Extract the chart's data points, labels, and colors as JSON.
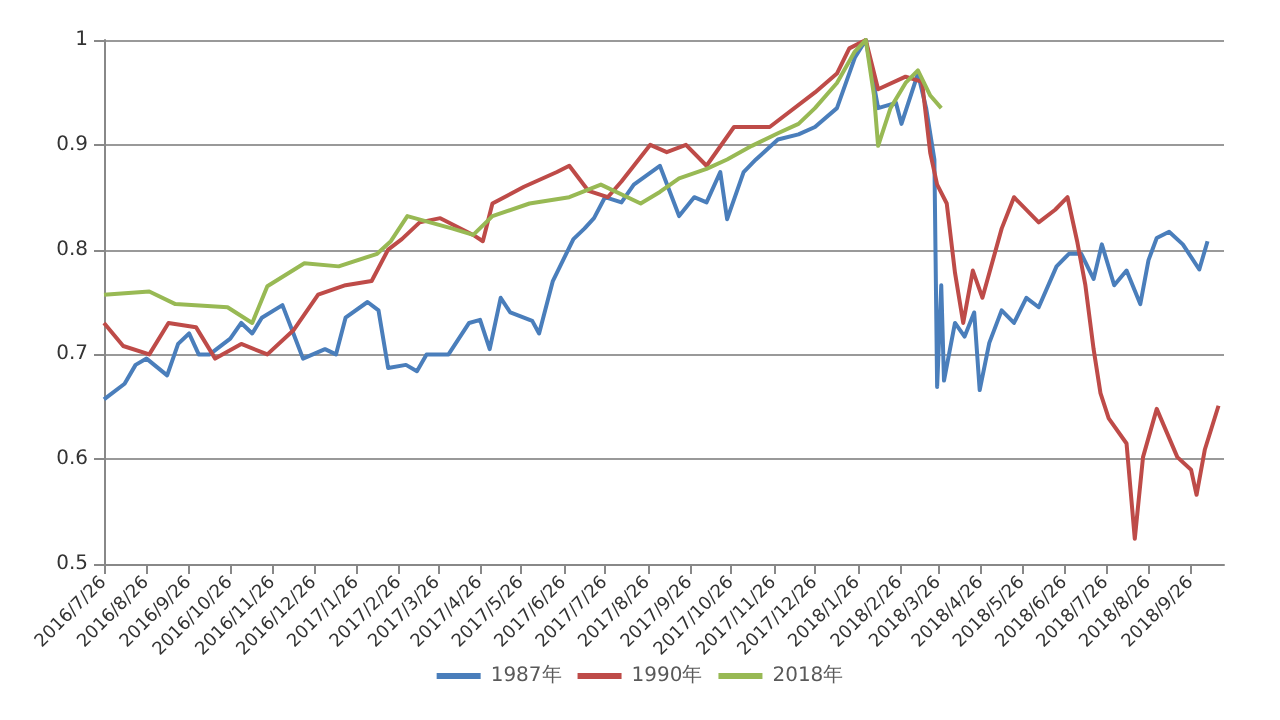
{
  "chart_data": {
    "type": "line",
    "xlim": [
      "2016-07-26",
      "2018-10-20"
    ],
    "xticks": [
      {
        "value": "2016-07-26",
        "label": "2016/7/26"
      },
      {
        "value": "2016-08-26",
        "label": "2016/8/26"
      },
      {
        "value": "2016-09-26",
        "label": "2016/9/26"
      },
      {
        "value": "2016-10-26",
        "label": "2016/10/26"
      },
      {
        "value": "2016-11-26",
        "label": "2016/11/26"
      },
      {
        "value": "2016-12-26",
        "label": "2016/12/26"
      },
      {
        "value": "2017-01-26",
        "label": "2017/1/26"
      },
      {
        "value": "2017-02-26",
        "label": "2017/2/26"
      },
      {
        "value": "2017-03-26",
        "label": "2017/3/26"
      },
      {
        "value": "2017-04-26",
        "label": "2017/4/26"
      },
      {
        "value": "2017-05-26",
        "label": "2017/5/26"
      },
      {
        "value": "2017-06-26",
        "label": "2017/6/26"
      },
      {
        "value": "2017-07-26",
        "label": "2017/7/26"
      },
      {
        "value": "2017-08-26",
        "label": "2017/8/26"
      },
      {
        "value": "2017-09-26",
        "label": "2017/9/26"
      },
      {
        "value": "2017-10-26",
        "label": "2017/10/26"
      },
      {
        "value": "2017-11-26",
        "label": "2017/11/26"
      },
      {
        "value": "2017-12-26",
        "label": "2017/12/26"
      },
      {
        "value": "2018-01-26",
        "label": "2018/1/26"
      },
      {
        "value": "2018-02-26",
        "label": "2018/2/26"
      },
      {
        "value": "2018-03-26",
        "label": "2018/3/26"
      },
      {
        "value": "2018-04-26",
        "label": "2018/4/26"
      },
      {
        "value": "2018-05-26",
        "label": "2018/5/26"
      },
      {
        "value": "2018-06-26",
        "label": "2018/6/26"
      },
      {
        "value": "2018-07-26",
        "label": "2018/7/26"
      },
      {
        "value": "2018-08-26",
        "label": "2018/8/26"
      },
      {
        "value": "2018-09-26",
        "label": "2018/9/26"
      }
    ],
    "ylim": [
      0.5,
      1
    ],
    "yticks": [
      0.5,
      0.6,
      0.7,
      0.8,
      0.9,
      1
    ],
    "grid": "y",
    "legend": "bottom",
    "marker": "none",
    "line_style": "solid",
    "series": [
      {
        "name": "1987年",
        "color": "#4a7ebb",
        "x": [
          "2016-07-26",
          "2016-08-10",
          "2016-08-18",
          "2016-08-26",
          "2016-09-10",
          "2016-09-18",
          "2016-09-26",
          "2016-10-03",
          "2016-10-11",
          "2016-10-26",
          "2016-11-03",
          "2016-11-11",
          "2016-11-18",
          "2016-12-03",
          "2016-12-11",
          "2016-12-18",
          "2017-01-03",
          "2017-01-11",
          "2017-01-18",
          "2017-02-03",
          "2017-02-11",
          "2017-02-18",
          "2017-03-03",
          "2017-03-11",
          "2017-03-18",
          "2017-04-03",
          "2017-04-18",
          "2017-04-26",
          "2017-05-03",
          "2017-05-11",
          "2017-05-18",
          "2017-06-03",
          "2017-06-08",
          "2017-06-18",
          "2017-07-03",
          "2017-07-11",
          "2017-07-18",
          "2017-07-26",
          "2017-08-07",
          "2017-08-16",
          "2017-09-04",
          "2017-09-18",
          "2017-09-29",
          "2017-10-08",
          "2017-10-18",
          "2017-10-23",
          "2017-11-04",
          "2017-11-13",
          "2017-11-29",
          "2017-12-14",
          "2017-12-26",
          "2018-01-11",
          "2018-01-24",
          "2018-02-01",
          "2018-02-10",
          "2018-02-23",
          "2018-02-27",
          "2018-03-11",
          "2018-03-17",
          "2018-03-23",
          "2018-03-25",
          "2018-03-28",
          "2018-03-30",
          "2018-04-07",
          "2018-04-14",
          "2018-04-21",
          "2018-04-25",
          "2018-05-02",
          "2018-05-11",
          "2018-05-20",
          "2018-05-29",
          "2018-06-07",
          "2018-06-20",
          "2018-06-29",
          "2018-07-08",
          "2018-07-17",
          "2018-07-23",
          "2018-08-01",
          "2018-08-10",
          "2018-08-20",
          "2018-08-26",
          "2018-09-01",
          "2018-09-10",
          "2018-09-20",
          "2018-10-02",
          "2018-10-08"
        ],
        "values": [
          0.657,
          0.672,
          0.69,
          0.696,
          0.68,
          0.71,
          0.72,
          0.7,
          0.7,
          0.715,
          0.73,
          0.72,
          0.735,
          0.747,
          0.72,
          0.696,
          0.705,
          0.7,
          0.735,
          0.75,
          0.742,
          0.687,
          0.69,
          0.684,
          0.7,
          0.7,
          0.73,
          0.733,
          0.705,
          0.754,
          0.74,
          0.732,
          0.72,
          0.77,
          0.81,
          0.82,
          0.83,
          0.85,
          0.845,
          0.862,
          0.88,
          0.832,
          0.85,
          0.845,
          0.874,
          0.829,
          0.874,
          0.886,
          0.905,
          0.91,
          0.917,
          0.935,
          0.983,
          1,
          0.935,
          0.94,
          0.92,
          0.968,
          0.935,
          0.886,
          0.669,
          0.766,
          0.675,
          0.73,
          0.717,
          0.74,
          0.666,
          0.711,
          0.742,
          0.73,
          0.754,
          0.745,
          0.784,
          0.796,
          0.796,
          0.772,
          0.805,
          0.766,
          0.78,
          0.748,
          0.79,
          0.811,
          0.817,
          0.805,
          0.781,
          0.808
        ]
      },
      {
        "name": "1990年",
        "color": "#be4b48",
        "x": [
          "2016-07-26",
          "2016-08-09",
          "2016-08-28",
          "2016-09-11",
          "2016-10-01",
          "2016-10-15",
          "2016-11-03",
          "2016-11-22",
          "2016-12-11",
          "2016-12-29",
          "2017-01-18",
          "2017-02-06",
          "2017-02-18",
          "2017-02-28",
          "2017-03-13",
          "2017-03-28",
          "2017-04-21",
          "2017-04-28",
          "2017-05-05",
          "2017-05-28",
          "2017-06-21",
          "2017-06-30",
          "2017-07-14",
          "2017-07-28",
          "2017-08-07",
          "2017-08-28",
          "2017-09-09",
          "2017-09-23",
          "2017-10-08",
          "2017-10-28",
          "2017-11-23",
          "2017-12-26",
          "2018-01-11",
          "2018-01-20",
          "2018-02-01",
          "2018-02-10",
          "2018-03-02",
          "2018-03-14",
          "2018-03-20",
          "2018-03-25",
          "2018-04-01",
          "2018-04-07",
          "2018-04-13",
          "2018-04-20",
          "2018-04-27",
          "2018-05-11",
          "2018-05-20",
          "2018-06-07",
          "2018-06-19",
          "2018-06-28",
          "2018-07-05",
          "2018-07-11",
          "2018-07-17",
          "2018-07-22",
          "2018-07-28",
          "2018-08-10",
          "2018-08-16",
          "2018-08-22",
          "2018-09-01",
          "2018-09-16",
          "2018-09-26",
          "2018-09-30",
          "2018-10-06",
          "2018-10-16"
        ],
        "values": [
          0.73,
          0.708,
          0.7,
          0.73,
          0.726,
          0.696,
          0.71,
          0.7,
          0.723,
          0.757,
          0.766,
          0.77,
          0.8,
          0.81,
          0.826,
          0.83,
          0.814,
          0.808,
          0.844,
          0.86,
          0.874,
          0.88,
          0.856,
          0.85,
          0.865,
          0.9,
          0.893,
          0.9,
          0.88,
          0.917,
          0.917,
          0.95,
          0.968,
          0.992,
          1,
          0.953,
          0.965,
          0.96,
          0.892,
          0.862,
          0.844,
          0.778,
          0.73,
          0.78,
          0.754,
          0.82,
          0.85,
          0.826,
          0.838,
          0.85,
          0.808,
          0.766,
          0.705,
          0.663,
          0.639,
          0.615,
          0.524,
          0.602,
          0.648,
          0.602,
          0.59,
          0.566,
          0.609,
          0.651
        ]
      },
      {
        "name": "2018年",
        "color": "#98b954",
        "x": [
          "2016-07-26",
          "2016-08-28",
          "2016-09-16",
          "2016-10-24",
          "2016-11-11",
          "2016-11-22",
          "2016-12-19",
          "2017-01-13",
          "2017-02-10",
          "2017-02-20",
          "2017-03-04",
          "2017-04-06",
          "2017-04-21",
          "2017-05-05",
          "2017-06-01",
          "2017-06-30",
          "2017-07-23",
          "2017-08-21",
          "2017-09-04",
          "2017-09-18",
          "2017-10-08",
          "2017-10-23",
          "2017-11-10",
          "2017-11-29",
          "2017-12-14",
          "2017-12-26",
          "2018-01-11",
          "2018-01-24",
          "2018-02-01",
          "2018-02-07",
          "2018-02-10",
          "2018-02-19",
          "2018-03-02",
          "2018-03-11",
          "2018-03-20",
          "2018-03-28"
        ],
        "values": [
          0.757,
          0.76,
          0.748,
          0.745,
          0.73,
          0.765,
          0.787,
          0.784,
          0.796,
          0.808,
          0.832,
          0.82,
          0.814,
          0.832,
          0.844,
          0.85,
          0.862,
          0.844,
          0.855,
          0.868,
          0.877,
          0.886,
          0.899,
          0.911,
          0.92,
          0.935,
          0.959,
          0.989,
          1,
          0.947,
          0.899,
          0.935,
          0.959,
          0.971,
          0.947,
          0.935
        ]
      }
    ]
  }
}
